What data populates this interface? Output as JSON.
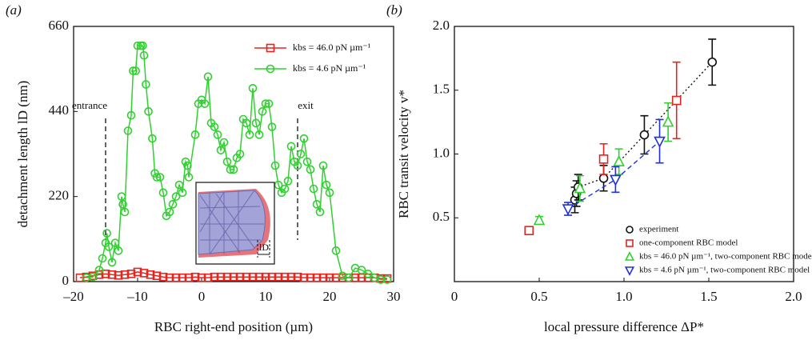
{
  "chart_data": [
    {
      "type": "line",
      "panel_label": "(a)",
      "x_label": "RBC right-end position (µm)",
      "y_label": "detachment length lD (nm)",
      "xlim": [
        -20,
        30
      ],
      "xticks": [
        {
          "value": -20,
          "label": "–20"
        },
        {
          "value": -10,
          "label": "–10"
        },
        0,
        10,
        20,
        30
      ],
      "ylim": [
        0,
        660
      ],
      "yticks": [
        0,
        220,
        440,
        660
      ],
      "vlines": [
        {
          "x": -15,
          "label": "entrance"
        },
        {
          "x": 15,
          "label": "exit"
        }
      ],
      "inset_label": "lD",
      "series": [
        {
          "name": "kbs = 46.0 pN µm⁻¹",
          "color": "#e8231d",
          "marker": "square",
          "x": [
            -19,
            -18,
            -17,
            -16,
            -15,
            -14,
            -13,
            -12,
            -11,
            -10,
            -9,
            -8,
            -7,
            -6,
            -5,
            -4,
            -3,
            -2,
            -1,
            0,
            1,
            2,
            3,
            4,
            5,
            6,
            7,
            8,
            9,
            10,
            11,
            12,
            13,
            14,
            15,
            16,
            17,
            18,
            19,
            20,
            21,
            22,
            23,
            24,
            25,
            26,
            27,
            28,
            29
          ],
          "values": [
            10,
            12,
            15,
            18,
            20,
            18,
            16,
            18,
            20,
            25,
            22,
            18,
            15,
            12,
            10,
            10,
            10,
            10,
            12,
            10,
            10,
            12,
            12,
            12,
            12,
            12,
            12,
            12,
            12,
            12,
            12,
            12,
            12,
            12,
            12,
            10,
            10,
            10,
            10,
            10,
            10,
            10,
            10,
            10,
            10,
            10,
            10,
            8,
            8
          ]
        },
        {
          "name": "kbs = 4.6 pN µm⁻¹",
          "color": "#2fd12f",
          "marker": "circle",
          "x": [
            -18,
            -17,
            -16,
            -15.5,
            -15,
            -14.8,
            -14.5,
            -14,
            -13.5,
            -13,
            -12.5,
            -12.3,
            -12,
            -11.5,
            -11,
            -10.7,
            -10.3,
            -10,
            -9.5,
            -9.2,
            -9,
            -8.7,
            -8.3,
            -7.7,
            -7.3,
            -7,
            -6.5,
            -6,
            -5.5,
            -5,
            -4.5,
            -4,
            -3.5,
            -3,
            -2.5,
            -2.2,
            -2,
            -1,
            -0.5,
            0,
            0.5,
            1,
            1.5,
            2,
            2.5,
            3,
            3.5,
            4,
            4.5,
            5,
            5.5,
            6,
            6.5,
            7,
            7.5,
            8,
            8.5,
            9,
            9.5,
            10,
            10.5,
            11,
            11.5,
            12,
            12.5,
            13,
            13.5,
            14,
            14.5,
            15,
            15.5,
            16,
            16.5,
            17,
            17.5,
            18,
            18.5,
            19,
            19.5,
            20,
            21,
            22,
            23,
            24,
            25,
            26,
            27,
            28,
            29
          ],
          "values": [
            10,
            12,
            30,
            60,
            100,
            125,
            90,
            50,
            100,
            80,
            220,
            200,
            180,
            390,
            430,
            545,
            545,
            610,
            610,
            610,
            585,
            510,
            440,
            370,
            280,
            270,
            270,
            230,
            170,
            180,
            200,
            220,
            250,
            230,
            310,
            300,
            270,
            380,
            460,
            470,
            460,
            530,
            410,
            400,
            380,
            340,
            360,
            310,
            290,
            290,
            320,
            330,
            420,
            410,
            380,
            500,
            410,
            380,
            440,
            460,
            460,
            400,
            300,
            250,
            230,
            240,
            260,
            350,
            310,
            300,
            330,
            370,
            310,
            290,
            240,
            200,
            180,
            300,
            250,
            230,
            80,
            15,
            10,
            35,
            30,
            20,
            10,
            5,
            5
          ]
        }
      ]
    },
    {
      "type": "scatter",
      "panel_label": "(b)",
      "x_label": "local pressure difference ΔP*",
      "y_label": "RBC transit velocity v*",
      "xlim": [
        0,
        2
      ],
      "xticks": [
        0,
        0.5,
        {
          "value": 1,
          "label": "1.0"
        },
        1.5,
        {
          "value": 2,
          "label": "2.0"
        }
      ],
      "ylim": [
        0,
        2
      ],
      "yticks": [
        0.5,
        {
          "value": 1,
          "label": "1.0"
        },
        1.5,
        {
          "value": 2,
          "label": "2.0"
        }
      ],
      "series": [
        {
          "name": "experiment",
          "color": "#111111",
          "marker": "circle",
          "line": "dotted",
          "x": [
            0.71,
            0.72,
            0.73,
            0.88,
            1.12,
            1.52
          ],
          "values": [
            0.64,
            0.69,
            0.74,
            0.81,
            1.15,
            1.72
          ],
          "errors": [
            0.1,
            0.1,
            0.1,
            0.1,
            0.15,
            0.18
          ]
        },
        {
          "name": "one-component RBC model",
          "color": "#e8231d",
          "marker": "square",
          "x": [
            0.44,
            0.88,
            1.31
          ],
          "values": [
            0.4,
            0.96,
            1.42
          ],
          "errors": [
            0.03,
            0.12,
            0.3
          ]
        },
        {
          "name": "kbs = 46.0 pN µm⁻¹, two-component RBC model",
          "color": "#2fd12f",
          "marker": "triangle",
          "x": [
            0.5,
            0.74,
            0.97,
            1.26
          ],
          "values": [
            0.48,
            0.73,
            0.94,
            1.25
          ],
          "errors": [
            0.03,
            0.1,
            0.1,
            0.15
          ]
        },
        {
          "name": "kbs = 4.6 pN µm⁻¹, two-component RBC model",
          "color": "#1f2fe0",
          "marker": "triangle-down",
          "line": "dashed",
          "x": [
            0.67,
            0.95,
            1.21
          ],
          "values": [
            0.57,
            0.8,
            1.1
          ],
          "errors": [
            0.05,
            0.1,
            0.17
          ]
        }
      ]
    }
  ]
}
